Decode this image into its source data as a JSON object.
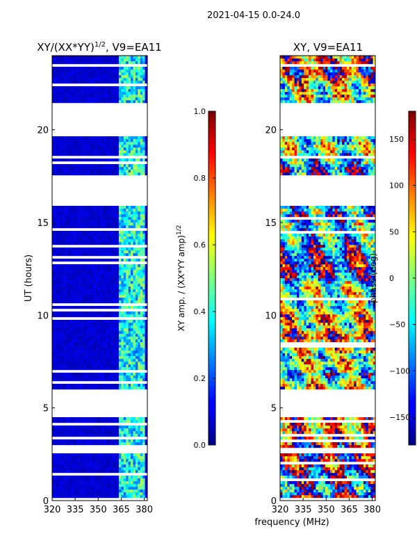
{
  "figure": {
    "suptitle": "2021-04-15 0.0-24.0"
  },
  "chart_data": [
    {
      "type": "heatmap",
      "id": "left",
      "title_main": "XY/(XX*YY)",
      "title_sup": "1/2",
      "title_tail": ", V9=EA11",
      "xlabel": "",
      "ylabel": "UT (hours)",
      "xlim": [
        320,
        382
      ],
      "ylim": [
        0,
        24
      ],
      "xticks": [
        320,
        335,
        350,
        365,
        380
      ],
      "yticks": [
        0,
        5,
        10,
        15,
        20
      ],
      "colorbar": {
        "label_main": "XY amp. / (XX*YY amp)",
        "label_sup": "1/2",
        "range": [
          0.0,
          1.0
        ],
        "ticks": [
          "0.0",
          "0.2",
          "0.4",
          "0.6",
          "0.8",
          "1.0"
        ],
        "colormap": "jet"
      },
      "blank_hours": [
        [
          0.0,
          0.1
        ],
        [
          1.6,
          1.7
        ],
        [
          2.5,
          2.8
        ],
        [
          4.5,
          6.0
        ],
        [
          15.9,
          17.6
        ],
        [
          19.7,
          21.4
        ]
      ],
      "bright_freq_band_mhz": [
        363,
        381
      ],
      "typical_value_background": 0.05,
      "typical_value_band": 0.35
    },
    {
      "type": "heatmap",
      "id": "right",
      "title_main": "XY, V9=EA11",
      "xlabel": "frequency (MHz)",
      "ylabel": "",
      "xlim": [
        320,
        382
      ],
      "ylim": [
        0,
        24
      ],
      "xticks": [
        320,
        335,
        350,
        365,
        380
      ],
      "yticks": [
        0,
        5,
        10,
        15,
        20
      ],
      "colorbar": {
        "label_main": "phase (deg)",
        "range": [
          -180,
          180
        ],
        "ticks": [
          "-150",
          "-100",
          "-50",
          "0",
          "50",
          "100",
          "150"
        ],
        "colormap": "jet"
      },
      "blank_hours": [
        [
          0.0,
          0.1
        ],
        [
          1.6,
          1.7
        ],
        [
          2.5,
          2.8
        ],
        [
          4.5,
          6.0
        ],
        [
          15.9,
          17.6
        ],
        [
          19.7,
          21.4
        ]
      ]
    }
  ]
}
